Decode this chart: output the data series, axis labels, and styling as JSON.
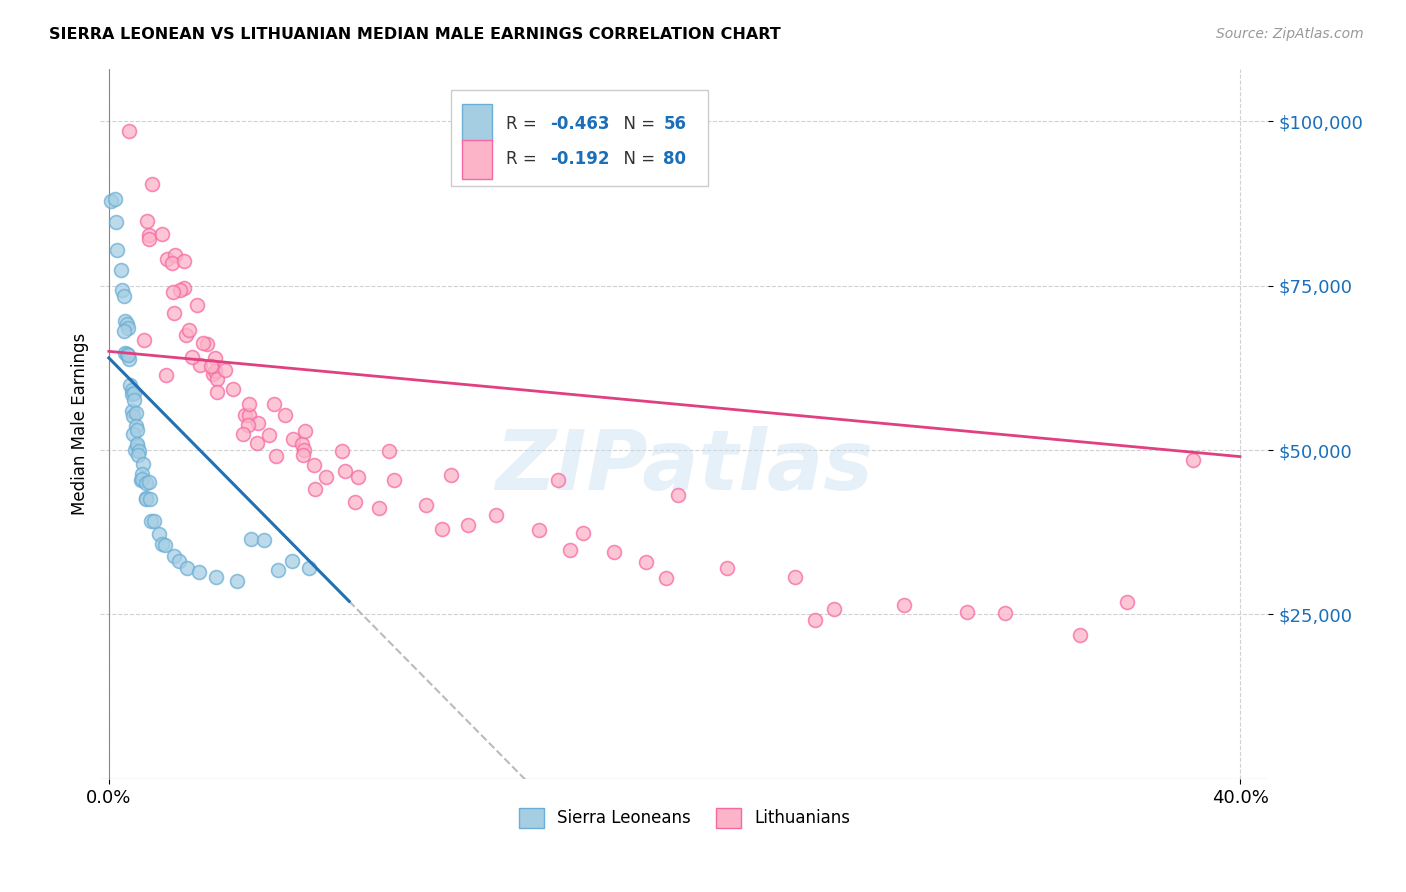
{
  "title": "SIERRA LEONEAN VS LITHUANIAN MEDIAN MALE EARNINGS CORRELATION CHART",
  "source": "Source: ZipAtlas.com",
  "ylabel": "Median Male Earnings",
  "ytick_labels": [
    "$25,000",
    "$50,000",
    "$75,000",
    "$100,000"
  ],
  "ytick_values": [
    25000,
    50000,
    75000,
    100000
  ],
  "ylim": [
    0,
    108000
  ],
  "xlim": [
    -0.003,
    0.41
  ],
  "legend_label_blue": "Sierra Leoneans",
  "legend_label_pink": "Lithuanians",
  "color_blue_fill": "#a6cee3",
  "color_pink_fill": "#fbb4c8",
  "color_blue_edge": "#6baed6",
  "color_pink_edge": "#f768a1",
  "color_blue_line": "#2171b5",
  "color_pink_line": "#e04080",
  "color_dashed": "#bbbbbb",
  "watermark": "ZIPatlas",
  "blue_line_x0": 0.0,
  "blue_line_y0": 64000,
  "blue_line_x1": 0.085,
  "blue_line_y1": 27000,
  "pink_line_x0": 0.0,
  "pink_line_y0": 65000,
  "pink_line_x1": 0.4,
  "pink_line_y1": 49000,
  "blue_scatter_x": [
    0.001,
    0.002,
    0.003,
    0.004,
    0.004,
    0.005,
    0.005,
    0.006,
    0.006,
    0.006,
    0.006,
    0.007,
    0.007,
    0.007,
    0.007,
    0.008,
    0.008,
    0.008,
    0.008,
    0.009,
    0.009,
    0.009,
    0.009,
    0.009,
    0.01,
    0.01,
    0.01,
    0.01,
    0.01,
    0.011,
    0.011,
    0.011,
    0.012,
    0.012,
    0.013,
    0.013,
    0.014,
    0.014,
    0.015,
    0.015,
    0.016,
    0.017,
    0.019,
    0.02,
    0.022,
    0.025,
    0.028,
    0.032,
    0.038,
    0.045,
    0.05,
    0.055,
    0.06,
    0.065,
    0.07,
    0.001
  ],
  "blue_scatter_y": [
    88000,
    84000,
    80000,
    78000,
    75000,
    74000,
    72000,
    70000,
    68000,
    67000,
    65000,
    65000,
    63000,
    62000,
    61000,
    60000,
    59000,
    58000,
    57000,
    57000,
    56000,
    55000,
    54000,
    53000,
    52000,
    52000,
    51000,
    50000,
    49000,
    49000,
    48000,
    47000,
    46000,
    46000,
    45000,
    44000,
    43000,
    42000,
    41000,
    40000,
    39000,
    38000,
    37000,
    36000,
    35000,
    34000,
    33000,
    32000,
    31000,
    30000,
    38000,
    36000,
    34000,
    33000,
    32000,
    91000
  ],
  "pink_scatter_x": [
    0.008,
    0.012,
    0.013,
    0.015,
    0.016,
    0.018,
    0.02,
    0.021,
    0.022,
    0.024,
    0.024,
    0.025,
    0.026,
    0.028,
    0.03,
    0.03,
    0.032,
    0.033,
    0.034,
    0.035,
    0.036,
    0.037,
    0.038,
    0.04,
    0.041,
    0.043,
    0.045,
    0.046,
    0.048,
    0.05,
    0.052,
    0.054,
    0.056,
    0.058,
    0.06,
    0.062,
    0.064,
    0.066,
    0.068,
    0.07,
    0.072,
    0.075,
    0.078,
    0.08,
    0.085,
    0.09,
    0.095,
    0.1,
    0.11,
    0.12,
    0.13,
    0.14,
    0.15,
    0.16,
    0.17,
    0.18,
    0.19,
    0.2,
    0.22,
    0.24,
    0.26,
    0.28,
    0.3,
    0.32,
    0.34,
    0.36,
    0.385,
    0.01,
    0.02,
    0.03,
    0.04,
    0.05,
    0.06,
    0.07,
    0.08,
    0.1,
    0.12,
    0.16,
    0.2,
    0.25
  ],
  "pink_scatter_y": [
    96000,
    90000,
    86000,
    85000,
    83000,
    81000,
    79000,
    78000,
    77000,
    76000,
    75000,
    74000,
    73000,
    72000,
    71000,
    70000,
    69000,
    68000,
    67000,
    66000,
    65000,
    64000,
    63000,
    62000,
    61000,
    60000,
    59000,
    58000,
    57000,
    56000,
    55000,
    55000,
    54000,
    53000,
    53000,
    52000,
    51000,
    50000,
    50000,
    49000,
    48000,
    47000,
    47000,
    46000,
    45000,
    44000,
    44000,
    43000,
    42000,
    41000,
    40000,
    39000,
    38000,
    37000,
    36000,
    35000,
    34000,
    33000,
    31000,
    29000,
    28000,
    27000,
    26000,
    25000,
    24000,
    23000,
    48000,
    65000,
    62000,
    60000,
    58000,
    56000,
    55000,
    53000,
    52000,
    50000,
    48000,
    44000,
    42000,
    27000
  ]
}
